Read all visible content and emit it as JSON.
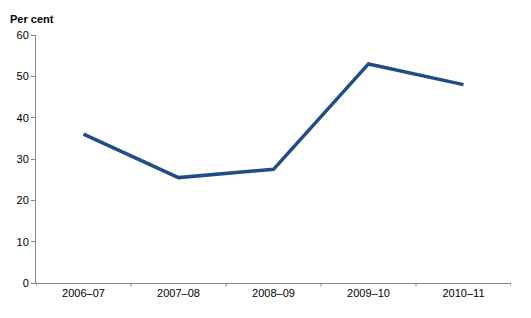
{
  "chart_data": {
    "type": "line",
    "ylabel": "Per cent",
    "categories": [
      "2006–07",
      "2007–08",
      "2008–09",
      "2009–10",
      "2010–11"
    ],
    "values": [
      36,
      25.5,
      27.5,
      53,
      48
    ],
    "color": "#1f4e86",
    "ylim": [
      0,
      60
    ],
    "yticks": [
      0,
      10,
      20,
      30,
      40,
      50,
      60
    ],
    "grid": false
  }
}
